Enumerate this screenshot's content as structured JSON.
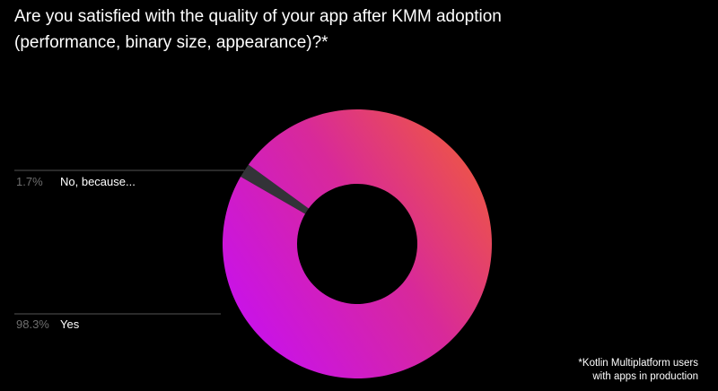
{
  "title": "Are you satisfied with the quality of your app after KMM adoption (performance, binary size, appearance)?*",
  "footnote": {
    "line1": "*Kotlin Multiplatform users",
    "line2": "with apps in production"
  },
  "colors": {
    "background": "#000000",
    "no_slice": "#333338",
    "gradient_start": "#c912e8",
    "gradient_mid": "#d8299a",
    "gradient_end": "#ee5644",
    "leader_line": "#555555",
    "percent_text": "#6e6e6e"
  },
  "chart_data": {
    "type": "pie",
    "variant": "donut",
    "categories": [
      "No, because...",
      "Yes"
    ],
    "values": [
      1.7,
      98.3
    ],
    "labels": [
      "1.7%",
      "98.3%"
    ],
    "title": "Are you satisfied with the quality of your app after KMM adoption (performance, binary size, appearance)?*"
  }
}
